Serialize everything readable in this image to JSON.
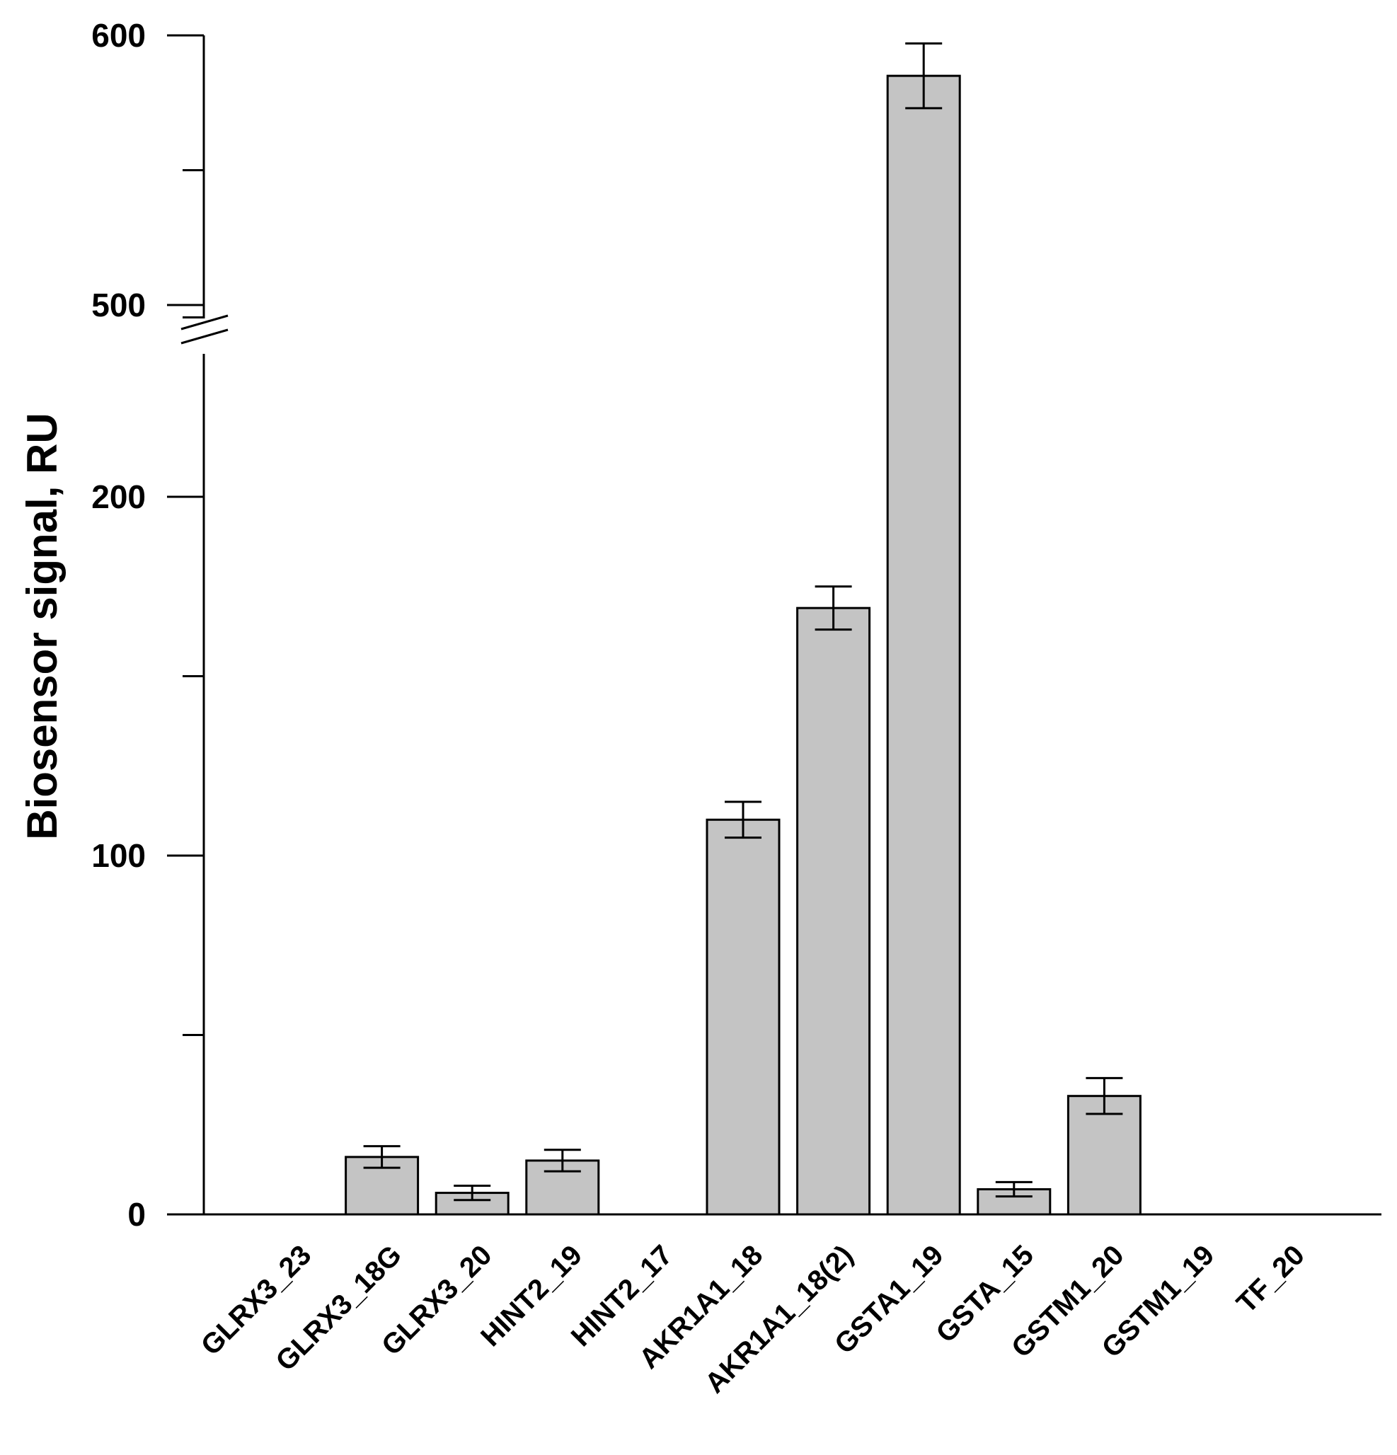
{
  "chart_data": {
    "type": "bar",
    "ylabel": "Biosensor signal, RU",
    "xlabel": "",
    "title": "",
    "categories": [
      "GLRX3_23",
      "GLRX3_18G",
      "GLRX3_20",
      "HINT2_19",
      "HINT2_17",
      "AKR1A1_18",
      "AKR1A1_18(2)",
      "GSTA1_19",
      "GSTA_15",
      "GSTM1_20",
      "GSTM1_19",
      "TF_20"
    ],
    "values": [
      0,
      16,
      6,
      15,
      0,
      110,
      169,
      585,
      7,
      33,
      0,
      0
    ],
    "errors": [
      0,
      3,
      2,
      3,
      0,
      5,
      6,
      12,
      2,
      5,
      0,
      0
    ],
    "y_axis": {
      "lower_segment": [
        0,
        300
      ],
      "upper_segment": [
        500,
        600
      ],
      "break": true,
      "tick_labels": [
        "0",
        "100",
        "200",
        "500",
        "600"
      ]
    },
    "colors": {
      "bar_fill": "#c4c4c4",
      "bar_stroke": "#000000"
    },
    "grid": false,
    "legend": "none"
  }
}
